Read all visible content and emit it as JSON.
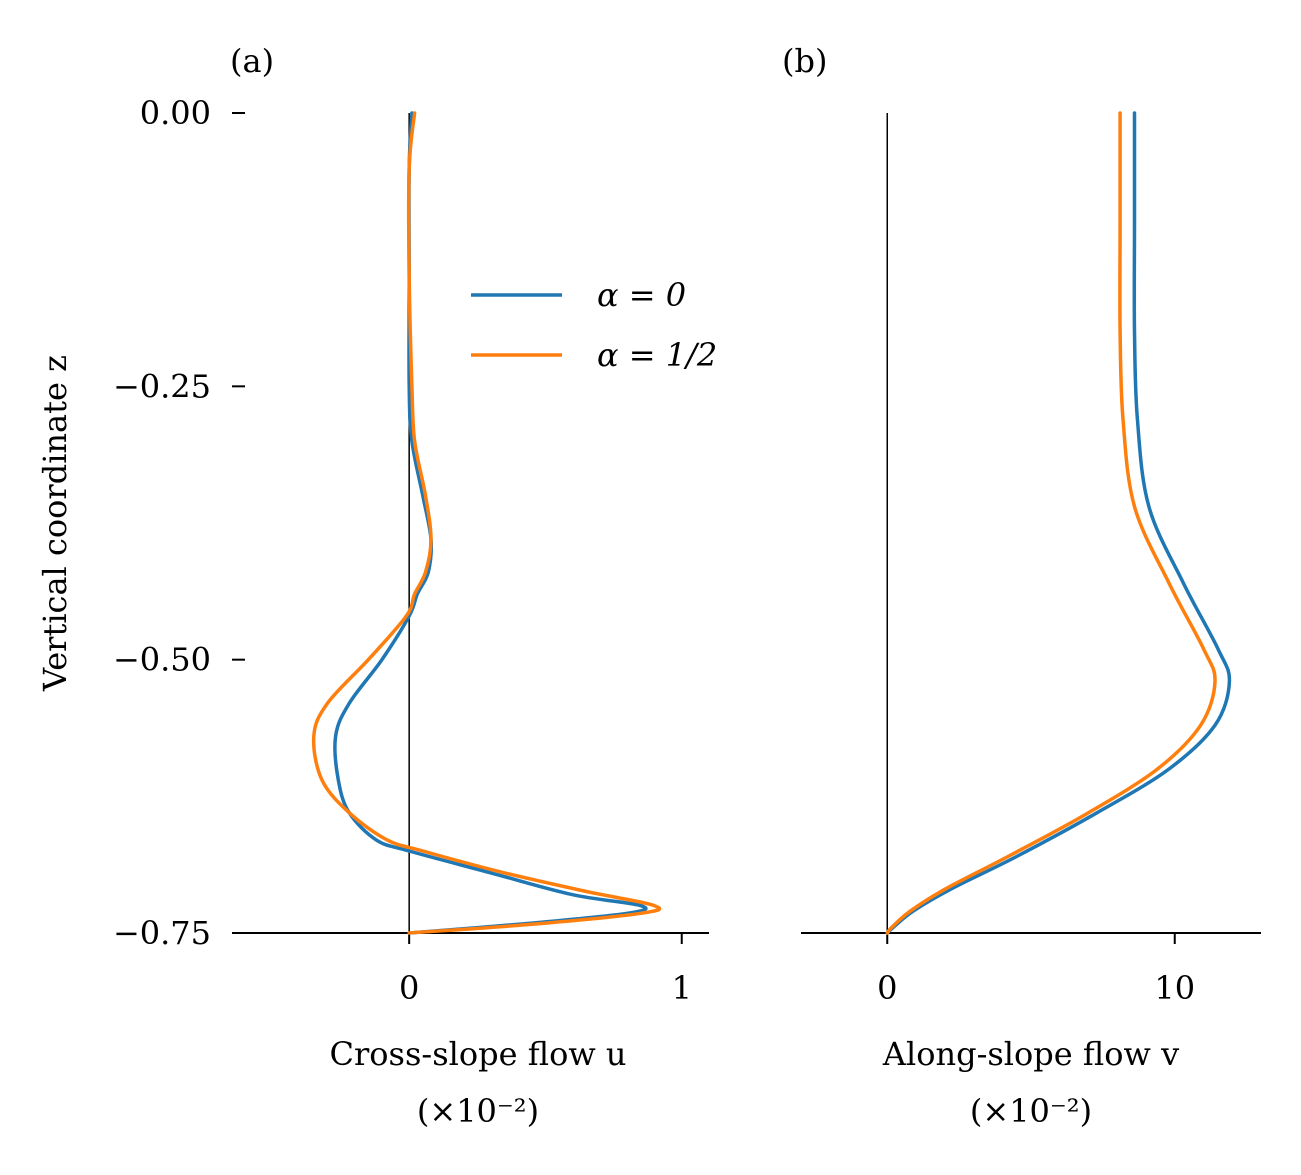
{
  "figure": {
    "panel_a_label": "(a)",
    "panel_b_label": "(b)"
  },
  "legend": {
    "entries": [
      {
        "label": "α = 0",
        "color": "#1f77b4"
      },
      {
        "label": "α = 1/2",
        "color": "#ff7f0e"
      }
    ]
  },
  "chart_data": [
    {
      "type": "line",
      "panel": "a",
      "xlabel": "Cross-slope flow u",
      "xlabel_scale": "(×10⁻²)",
      "ylabel": "Vertical coordinate z",
      "xlim": [
        -0.65,
        1.1
      ],
      "ylim": [
        -0.75,
        0.0
      ],
      "xticks": [
        0,
        1
      ],
      "xtick_labels": [
        "0",
        "1"
      ],
      "yticks": [
        0.0,
        -0.25,
        -0.5,
        -0.75
      ],
      "ytick_labels": [
        "0.00",
        "−0.25",
        "−0.50",
        "−0.75"
      ],
      "zero_line": true,
      "series": [
        {
          "name": "α = 0",
          "color": "#1f77b4",
          "points": [
            [
              0.01,
              0.0
            ],
            [
              0.0,
              -0.05
            ],
            [
              0.0,
              -0.15
            ],
            [
              0.0,
              -0.25
            ],
            [
              0.01,
              -0.3
            ],
            [
              0.05,
              -0.35
            ],
            [
              0.08,
              -0.39
            ],
            [
              0.07,
              -0.42
            ],
            [
              0.03,
              -0.44
            ],
            [
              0.0,
              -0.46
            ],
            [
              -0.1,
              -0.5
            ],
            [
              -0.22,
              -0.54
            ],
            [
              -0.27,
              -0.57
            ],
            [
              -0.26,
              -0.61
            ],
            [
              -0.22,
              -0.64
            ],
            [
              -0.12,
              -0.665
            ],
            [
              0.0,
              -0.675
            ],
            [
              0.3,
              -0.695
            ],
            [
              0.6,
              -0.715
            ],
            [
              0.85,
              -0.725
            ],
            [
              0.8,
              -0.732
            ],
            [
              0.4,
              -0.742
            ],
            [
              0.0,
              -0.75
            ]
          ]
        },
        {
          "name": "α = 1/2",
          "color": "#ff7f0e",
          "points": [
            [
              0.02,
              0.0
            ],
            [
              0.0,
              -0.05
            ],
            [
              0.0,
              -0.15
            ],
            [
              0.01,
              -0.25
            ],
            [
              0.02,
              -0.3
            ],
            [
              0.06,
              -0.35
            ],
            [
              0.08,
              -0.39
            ],
            [
              0.06,
              -0.42
            ],
            [
              0.02,
              -0.44
            ],
            [
              -0.01,
              -0.46
            ],
            [
              -0.15,
              -0.5
            ],
            [
              -0.3,
              -0.54
            ],
            [
              -0.35,
              -0.57
            ],
            [
              -0.32,
              -0.61
            ],
            [
              -0.22,
              -0.64
            ],
            [
              -0.08,
              -0.665
            ],
            [
              0.05,
              -0.675
            ],
            [
              0.35,
              -0.695
            ],
            [
              0.65,
              -0.712
            ],
            [
              0.9,
              -0.725
            ],
            [
              0.85,
              -0.732
            ],
            [
              0.45,
              -0.742
            ],
            [
              0.0,
              -0.75
            ]
          ]
        }
      ]
    },
    {
      "type": "line",
      "panel": "b",
      "xlabel": "Along-slope flow v",
      "xlabel_scale": "(×10⁻²)",
      "xlim": [
        -3,
        13
      ],
      "ylim": [
        -0.75,
        0.0
      ],
      "xticks": [
        0,
        10
      ],
      "xtick_labels": [
        "0",
        "10"
      ],
      "zero_line": true,
      "series": [
        {
          "name": "α = 0",
          "color": "#1f77b4",
          "points": [
            [
              8.6,
              0.0
            ],
            [
              8.6,
              -0.1
            ],
            [
              8.6,
              -0.2
            ],
            [
              8.7,
              -0.28
            ],
            [
              9.1,
              -0.36
            ],
            [
              10.3,
              -0.43
            ],
            [
              11.5,
              -0.49
            ],
            [
              11.9,
              -0.52
            ],
            [
              11.4,
              -0.56
            ],
            [
              9.8,
              -0.6
            ],
            [
              7.3,
              -0.64
            ],
            [
              4.5,
              -0.68
            ],
            [
              2.2,
              -0.71
            ],
            [
              0.9,
              -0.73
            ],
            [
              0.2,
              -0.745
            ],
            [
              0.0,
              -0.75
            ]
          ]
        },
        {
          "name": "α = 1/2",
          "color": "#ff7f0e",
          "points": [
            [
              8.1,
              0.0
            ],
            [
              8.1,
              -0.1
            ],
            [
              8.1,
              -0.2
            ],
            [
              8.2,
              -0.28
            ],
            [
              8.6,
              -0.36
            ],
            [
              9.8,
              -0.43
            ],
            [
              11.0,
              -0.49
            ],
            [
              11.4,
              -0.52
            ],
            [
              10.9,
              -0.56
            ],
            [
              9.4,
              -0.6
            ],
            [
              7.0,
              -0.64
            ],
            [
              4.2,
              -0.68
            ],
            [
              2.0,
              -0.71
            ],
            [
              0.8,
              -0.73
            ],
            [
              0.15,
              -0.745
            ],
            [
              0.0,
              -0.75
            ]
          ]
        }
      ]
    }
  ]
}
